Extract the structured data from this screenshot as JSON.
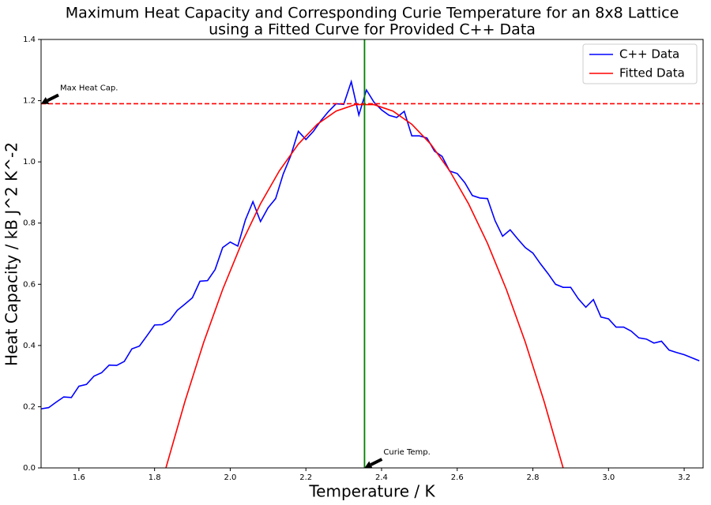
{
  "chart_data": {
    "type": "line",
    "title": [
      "Maximum Heat Capacity and Corresponding Curie Temperature for an 8x8 Lattice",
      "using a Fitted Curve for Provided C++ Data"
    ],
    "x_label": "Temperature / K",
    "y_label": "Heat Capacity / kB J^2 K^-2",
    "xlim": [
      1.5,
      3.25
    ],
    "ylim": [
      0,
      1.4
    ],
    "xticks": [
      1.6,
      1.8,
      {
        "value": 2,
        "label": "2.0"
      },
      2.2,
      2.4,
      2.6,
      2.8,
      {
        "value": 3,
        "label": "3.0"
      },
      3.2
    ],
    "yticks": [
      {
        "value": 0,
        "label": "0.0"
      },
      0.2,
      0.4,
      0.6,
      0.8,
      {
        "value": 1,
        "label": "1.0"
      },
      1.2,
      1.4
    ],
    "grid": false,
    "legend": "upper right",
    "series": [
      {
        "name": "C++ Data",
        "color": "#0000ff",
        "x": [
          1.5,
          1.52,
          1.54,
          1.56,
          1.58,
          1.6,
          1.62,
          1.64,
          1.66,
          1.68,
          1.7,
          1.72,
          1.74,
          1.76,
          1.78,
          1.8,
          1.82,
          1.84,
          1.86,
          1.88,
          1.9,
          1.92,
          1.94,
          1.96,
          1.98,
          2.0,
          2.02,
          2.04,
          2.06,
          2.08,
          2.1,
          2.12,
          2.14,
          2.16,
          2.18,
          2.2,
          2.22,
          2.24,
          2.26,
          2.28,
          2.3,
          2.32,
          2.34,
          2.36,
          2.38,
          2.4,
          2.42,
          2.44,
          2.46,
          2.48,
          2.5,
          2.52,
          2.54,
          2.56,
          2.58,
          2.6,
          2.62,
          2.64,
          2.66,
          2.68,
          2.7,
          2.72,
          2.74,
          2.76,
          2.78,
          2.8,
          2.82,
          2.84,
          2.86,
          2.88,
          2.9,
          2.92,
          2.94,
          2.96,
          2.98,
          3.0,
          3.02,
          3.04,
          3.06,
          3.08,
          3.1,
          3.12,
          3.14,
          3.16,
          3.18,
          3.2,
          3.22,
          3.24
        ],
        "values": [
          0.193,
          0.197,
          0.215,
          0.232,
          0.23,
          0.267,
          0.273,
          0.3,
          0.311,
          0.336,
          0.335,
          0.348,
          0.389,
          0.398,
          0.432,
          0.467,
          0.468,
          0.482,
          0.515,
          0.535,
          0.556,
          0.61,
          0.612,
          0.648,
          0.72,
          0.738,
          0.725,
          0.81,
          0.87,
          0.805,
          0.85,
          0.88,
          0.96,
          1.02,
          1.1,
          1.073,
          1.1,
          1.135,
          1.165,
          1.19,
          1.188,
          1.262,
          1.153,
          1.235,
          1.195,
          1.17,
          1.152,
          1.145,
          1.165,
          1.085,
          1.085,
          1.078,
          1.035,
          1.018,
          0.97,
          0.962,
          0.932,
          0.89,
          0.882,
          0.88,
          0.808,
          0.757,
          0.778,
          0.748,
          0.72,
          0.702,
          0.667,
          0.635,
          0.6,
          0.59,
          0.59,
          0.553,
          0.525,
          0.55,
          0.493,
          0.487,
          0.46,
          0.46,
          0.447,
          0.425,
          0.421,
          0.408,
          0.414,
          0.385,
          0.377,
          0.37,
          0.36,
          0.35
        ]
      },
      {
        "name": "Fitted Data",
        "color": "#ff0000",
        "x": [
          1.83,
          1.88,
          1.93,
          1.98,
          2.03,
          2.08,
          2.13,
          2.18,
          2.23,
          2.28,
          2.33,
          2.38,
          2.43,
          2.48,
          2.53,
          2.58,
          2.63,
          2.68,
          2.73,
          2.78,
          2.83,
          2.88
        ],
        "values": [
          0,
          0.216,
          0.411,
          0.583,
          0.734,
          0.863,
          0.971,
          1.058,
          1.123,
          1.166,
          1.187,
          1.187,
          1.166,
          1.123,
          1.058,
          0.971,
          0.863,
          0.734,
          0.583,
          0.411,
          0.216,
          0
        ]
      }
    ],
    "hline": {
      "value": 1.19,
      "color": "#ff0000"
    },
    "vline": {
      "value": 2.355,
      "color": "#008000"
    },
    "annotations": [
      {
        "text": "Max Heat Cap.",
        "x": 1.5,
        "y": 1.19
      },
      {
        "text": "Curie Temp.",
        "x": 2.355,
        "y": 0
      }
    ]
  }
}
